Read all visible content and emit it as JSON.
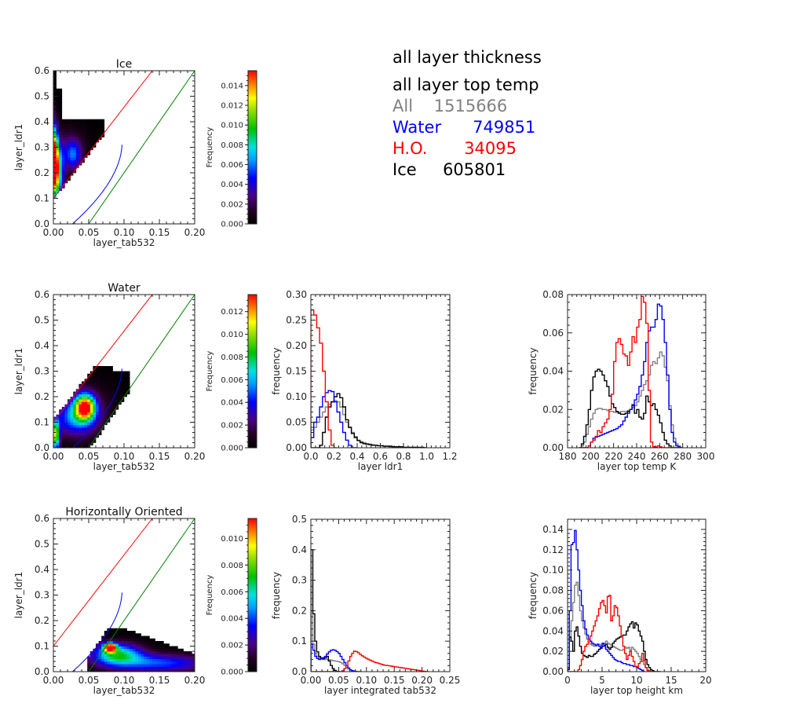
{
  "stats_panel": {
    "line1": "all layer thickness",
    "line2": "all layer top temp",
    "rows": [
      {
        "label": "All",
        "value": "1515666",
        "color": "#808080",
        "gap": "    "
      },
      {
        "label": "Water",
        "value": "749851",
        "color": "#0000ff",
        "gap": "      "
      },
      {
        "label": "H.O.",
        "value": "34095",
        "color": "#ff0000",
        "gap": "       "
      },
      {
        "label": "Ice",
        "value": "605801",
        "color": "#000000",
        "gap": "     "
      }
    ]
  },
  "colors": {
    "all": "#808080",
    "water": "#0000ff",
    "ho": "#ff0000",
    "ice": "#000000",
    "ref_red": "#ff0000",
    "ref_green": "#008000",
    "ref_blue": "#0000ff"
  },
  "chart_data": [
    {
      "id": "ice2d",
      "type": "heatmap",
      "title": "Ice",
      "xlabel": "layer_tab532",
      "ylabel": "layer_ldr1",
      "xlim": [
        0,
        0.2
      ],
      "ylim": [
        0,
        0.6
      ],
      "xticks": [
        "0.00",
        "0.05",
        "0.10",
        "0.15",
        "0.20"
      ],
      "yticks": [
        "0.0",
        "0.1",
        "0.2",
        "0.3",
        "0.4",
        "0.5",
        "0.6"
      ],
      "colorbar": {
        "label": "Frequency",
        "max": 0.0155,
        "ticks": [
          "0.000",
          "0.002",
          "0.004",
          "0.006",
          "0.008",
          "0.010",
          "0.012",
          "0.014"
        ]
      },
      "blobs": [
        {
          "x": 0.002,
          "y": 0.25,
          "sx": 0.003,
          "sy": 0.09,
          "amp": 1.0
        },
        {
          "x": 0.006,
          "y": 0.2,
          "sx": 0.006,
          "sy": 0.07,
          "amp": 0.6
        },
        {
          "x": 0.028,
          "y": 0.27,
          "sx": 0.008,
          "sy": 0.04,
          "amp": 0.3
        },
        {
          "x": 0.02,
          "y": 0.3,
          "sx": 0.02,
          "sy": 0.06,
          "amp": 0.12
        }
      ],
      "region": "ice"
    },
    {
      "id": "water2d",
      "type": "heatmap",
      "title": "Water",
      "xlabel": "layer_tab532",
      "ylabel": "layer_ldr1",
      "xlim": [
        0,
        0.2
      ],
      "ylim": [
        0,
        0.6
      ],
      "xticks": [
        "0.00",
        "0.05",
        "0.10",
        "0.15",
        "0.20"
      ],
      "yticks": [
        "0.0",
        "0.1",
        "0.2",
        "0.3",
        "0.4",
        "0.5",
        "0.6"
      ],
      "colorbar": {
        "label": "Frequency",
        "max": 0.0135,
        "ticks": [
          "0.000",
          "0.002",
          "0.004",
          "0.006",
          "0.008",
          "0.010",
          "0.012"
        ]
      },
      "blobs": [
        {
          "x": 0.003,
          "y": 0.05,
          "sx": 0.004,
          "sy": 0.04,
          "amp": 0.75
        },
        {
          "x": 0.045,
          "y": 0.16,
          "sx": 0.01,
          "sy": 0.035,
          "amp": 0.9
        },
        {
          "x": 0.03,
          "y": 0.12,
          "sx": 0.02,
          "sy": 0.05,
          "amp": 0.35
        },
        {
          "x": 0.05,
          "y": 0.15,
          "sx": 0.03,
          "sy": 0.08,
          "amp": 0.1
        }
      ],
      "region": "water"
    },
    {
      "id": "ho2d",
      "type": "heatmap",
      "title": "Horizontally Oriented",
      "xlabel": "layer_tab532",
      "ylabel": "layer_ldr1",
      "xlim": [
        0,
        0.2
      ],
      "ylim": [
        0,
        0.6
      ],
      "xticks": [
        "0.00",
        "0.05",
        "0.10",
        "0.15",
        "0.20"
      ],
      "yticks": [
        "0.0",
        "0.1",
        "0.2",
        "0.3",
        "0.4",
        "0.5",
        "0.6"
      ],
      "colorbar": {
        "label": "Frequency",
        "max": 0.0115,
        "ticks": [
          "0.000",
          "0.002",
          "0.004",
          "0.006",
          "0.008",
          "0.010"
        ]
      },
      "blobs": [
        {
          "x": 0.08,
          "y": 0.095,
          "sx": 0.006,
          "sy": 0.012,
          "amp": 1.0
        },
        {
          "x": 0.09,
          "y": 0.07,
          "sx": 0.025,
          "sy": 0.03,
          "amp": 0.55
        },
        {
          "x": 0.15,
          "y": 0.035,
          "sx": 0.05,
          "sy": 0.025,
          "amp": 0.35
        }
      ],
      "region": "ho"
    },
    {
      "id": "ldr1hist",
      "type": "line",
      "title": "",
      "xlabel": "layer ldr1",
      "ylabel": "frequency",
      "xlim": [
        0,
        1.2
      ],
      "ylim": [
        0,
        0.3
      ],
      "xticks": [
        "0.0",
        "0.2",
        "0.4",
        "0.6",
        "0.8",
        "1.0",
        "1.2"
      ],
      "yticks": [
        "0.00",
        "0.05",
        "0.10",
        "0.15",
        "0.20",
        "0.25",
        "0.30"
      ],
      "bin_start": 0,
      "bin_width": 0.025,
      "series": [
        {
          "name": "All",
          "color": "#808080",
          "values": [
            0.035,
            0.04,
            0.05,
            0.06,
            0.07,
            0.08,
            0.085,
            0.09,
            0.092,
            0.09,
            0.08,
            0.065,
            0.05,
            0.04,
            0.03,
            0.022,
            0.015,
            0.012,
            0.01,
            0.008,
            0.007,
            0.006,
            0.005,
            0.004,
            0.004,
            0.003,
            0.003,
            0.002,
            0.002,
            0.002,
            0.001,
            0.001,
            0.001,
            0.001,
            0.001,
            0.001,
            0.0,
            0.0,
            0.0,
            0.0
          ]
        },
        {
          "name": "Water",
          "color": "#0000ff",
          "values": [
            0.02,
            0.05,
            0.06,
            0.08,
            0.1,
            0.108,
            0.112,
            0.11,
            0.09,
            0.07,
            0.05,
            0.03,
            0.015,
            0.005,
            0.0,
            0.0
          ]
        },
        {
          "name": "H.O.",
          "color": "#ff0000",
          "values": [
            0.27,
            0.26,
            0.235,
            0.205,
            0.15,
            0.09,
            0.035,
            0.005,
            0.0
          ]
        },
        {
          "name": "Ice",
          "color": "#000000",
          "values": [
            0.0,
            0.0,
            0.0,
            0.005,
            0.03,
            0.06,
            0.08,
            0.09,
            0.1,
            0.106,
            0.098,
            0.08,
            0.055,
            0.04,
            0.028,
            0.02,
            0.014,
            0.01,
            0.008,
            0.007,
            0.006,
            0.005,
            0.005,
            0.004,
            0.004,
            0.003,
            0.003,
            0.003,
            0.002,
            0.002,
            0.002,
            0.002,
            0.001,
            0.001,
            0.001,
            0.001,
            0.001,
            0.001,
            0.001,
            0.0
          ]
        }
      ]
    },
    {
      "id": "temphist",
      "type": "line",
      "title": "",
      "xlabel": "layer top temp K",
      "ylabel": "frequency",
      "xlim": [
        180,
        300
      ],
      "ylim": [
        0,
        0.08
      ],
      "xticks": [
        "180",
        "200",
        "220",
        "240",
        "260",
        "280",
        "300"
      ],
      "yticks": [
        "0.00",
        "0.02",
        "0.04",
        "0.06",
        "0.08"
      ],
      "bin_start": 190,
      "bin_width": 2,
      "series": [
        {
          "name": "All",
          "color": "#808080",
          "values": [
            0,
            0.001,
            0.003,
            0.007,
            0.011,
            0.015,
            0.018,
            0.02,
            0.0205,
            0.0205,
            0.02,
            0.02,
            0.0195,
            0.019,
            0.019,
            0.0185,
            0.0185,
            0.0185,
            0.019,
            0.019,
            0.019,
            0.0195,
            0.02,
            0.021,
            0.022,
            0.024,
            0.027,
            0.03,
            0.033,
            0.035,
            0.038,
            0.043,
            0.045,
            0.044,
            0.047,
            0.05,
            0.048,
            0.042,
            0.035,
            0.022,
            0.012,
            0.005,
            0.002,
            0.001,
            0
          ]
        },
        {
          "name": "Water",
          "color": "#0000ff",
          "values": [
            0,
            0,
            0,
            0,
            0.001,
            0.003,
            0.005,
            0.0055,
            0.006,
            0.0065,
            0.007,
            0.0075,
            0.008,
            0.0085,
            0.009,
            0.0095,
            0.01,
            0.011,
            0.012,
            0.014,
            0.016,
            0.018,
            0.02,
            0.022,
            0.025,
            0.028,
            0.032,
            0.038,
            0.045,
            0.055,
            0.061,
            0.063,
            0.063,
            0.067,
            0.075,
            0.074,
            0.067,
            0.055,
            0.038,
            0.02,
            0.008,
            0.003,
            0.001,
            0.0005,
            0
          ]
        },
        {
          "name": "H.O.",
          "color": "#ff0000",
          "values": [
            0,
            0,
            0,
            0,
            0.001,
            0.003,
            0.004,
            0.006,
            0.009,
            0.008,
            0.011,
            0.013,
            0.015,
            0.02,
            0.028,
            0.045,
            0.055,
            0.057,
            0.054,
            0.049,
            0.048,
            0.043,
            0.05,
            0.058,
            0.055,
            0.063,
            0.067,
            0.079,
            0.076,
            0.065,
            0.03,
            0.003,
            0.0005,
            0.0005,
            0.001,
            0.0005,
            0,
            0,
            0,
            0,
            0,
            0,
            0,
            0,
            0
          ]
        },
        {
          "name": "Ice",
          "color": "#000000",
          "values": [
            0,
            0.002,
            0.006,
            0.012,
            0.02,
            0.03,
            0.037,
            0.04,
            0.041,
            0.04,
            0.038,
            0.035,
            0.032,
            0.027,
            0.023,
            0.021,
            0.019,
            0.018,
            0.0175,
            0.0175,
            0.018,
            0.019,
            0.02,
            0.0225,
            0.018,
            0.02,
            0.016,
            0.015,
            0.018,
            0.027,
            0.024,
            0.022,
            0.023,
            0.02,
            0.017,
            0.013,
            0.008,
            0.004,
            0.002,
            0.001,
            0,
            0,
            0,
            0,
            0
          ]
        }
      ]
    },
    {
      "id": "tabhist",
      "type": "line",
      "title": "",
      "xlabel": "layer integrated tab532",
      "ylabel": "frequency",
      "xlim": [
        0,
        0.25
      ],
      "ylim": [
        0,
        0.5
      ],
      "xticks": [
        "0.00",
        "0.05",
        "0.10",
        "0.15",
        "0.20",
        "0.25"
      ],
      "yticks": [
        "0.0",
        "0.1",
        "0.2",
        "0.3",
        "0.4",
        "0.5"
      ],
      "bin_start": 0,
      "bin_width": 0.0035,
      "series": [
        {
          "name": "All",
          "color": "#808080",
          "values": [
            0.2,
            0.09,
            0.06,
            0.05,
            0.045,
            0.042,
            0.04,
            0.04,
            0.04,
            0.039,
            0.038,
            0.036,
            0.035,
            0.034,
            0.033,
            0.03,
            0.026,
            0.02,
            0.014,
            0.008,
            0.005,
            0.003,
            0.002,
            0.001,
            0.001,
            0.0
          ]
        },
        {
          "name": "Water",
          "color": "#0000ff",
          "values": [
            0.09,
            0.07,
            0.05,
            0.043,
            0.04,
            0.042,
            0.045,
            0.05,
            0.058,
            0.065,
            0.07,
            0.072,
            0.07,
            0.066,
            0.06,
            0.05,
            0.04,
            0.03,
            0.02,
            0.012,
            0.006,
            0.003,
            0.001,
            0.0
          ]
        },
        {
          "name": "H.O.",
          "color": "#ff0000",
          "values": [
            0,
            0,
            0,
            0,
            0,
            0,
            0,
            0,
            0,
            0,
            0,
            0,
            0,
            0,
            0,
            0,
            0.003,
            0.01,
            0.02,
            0.035,
            0.05,
            0.06,
            0.067,
            0.066,
            0.062,
            0.057,
            0.052,
            0.048,
            0.044,
            0.041,
            0.038,
            0.035,
            0.032,
            0.03,
            0.028,
            0.026,
            0.024,
            0.022,
            0.021,
            0.02,
            0.019,
            0.018,
            0.017,
            0.016,
            0.015,
            0.014,
            0.013,
            0.012,
            0.011,
            0.01,
            0.009,
            0.008,
            0.007,
            0.006,
            0.005,
            0.004,
            0.003,
            0.002,
            0.001,
            0.0
          ]
        },
        {
          "name": "Ice",
          "color": "#000000",
          "values": [
            0.4,
            0.19,
            0.1,
            0.065,
            0.05,
            0.045,
            0.042,
            0.045,
            0.05,
            0.035,
            0.02,
            0.01,
            0.004,
            0.001,
            0.0
          ]
        }
      ]
    },
    {
      "id": "heighthist",
      "type": "line",
      "title": "",
      "xlabel": "layer top height km",
      "ylabel": "frequency",
      "xlim": [
        0,
        20
      ],
      "ylim": [
        0,
        0.15
      ],
      "xticks": [
        "0",
        "5",
        "10",
        "15",
        "20"
      ],
      "yticks": [
        "0.00",
        "0.02",
        "0.04",
        "0.06",
        "0.08",
        "0.10",
        "0.12",
        "0.14"
      ],
      "bin_start": 0,
      "bin_width": 0.25,
      "series": [
        {
          "name": "All",
          "color": "#808080",
          "values": [
            0.002,
            0.03,
            0.05,
            0.068,
            0.085,
            0.088,
            0.075,
            0.06,
            0.05,
            0.043,
            0.037,
            0.032,
            0.029,
            0.027,
            0.026,
            0.025,
            0.025,
            0.026,
            0.027,
            0.026,
            0.027,
            0.028,
            0.03,
            0.028,
            0.027,
            0.026,
            0.025,
            0.024,
            0.023,
            0.022,
            0.021,
            0.021,
            0.022,
            0.024,
            0.023,
            0.024,
            0.021,
            0.024,
            0.022,
            0.02,
            0.018,
            0.015,
            0.012,
            0.01,
            0.007,
            0.004,
            0.002,
            0.001,
            0.0
          ]
        },
        {
          "name": "Water",
          "color": "#0000ff",
          "values": [
            0.004,
            0.06,
            0.125,
            0.127,
            0.139,
            0.12,
            0.1,
            0.08,
            0.065,
            0.05,
            0.042,
            0.036,
            0.032,
            0.03,
            0.028,
            0.027,
            0.026,
            0.027,
            0.025,
            0.023,
            0.028,
            0.025,
            0.022,
            0.02,
            0.018,
            0.016,
            0.014,
            0.012,
            0.011,
            0.01,
            0.01,
            0.009,
            0.008,
            0.008,
            0.007,
            0.007,
            0.006,
            0.006,
            0.005,
            0.005,
            0.004,
            0.003,
            0.002,
            0.001,
            0.0
          ]
        },
        {
          "name": "H.O.",
          "color": "#ff0000",
          "values": [
            0,
            0,
            0,
            0,
            0,
            0,
            0.002,
            0.006,
            0.012,
            0.02,
            0.025,
            0.027,
            0.032,
            0.035,
            0.04,
            0.045,
            0.05,
            0.055,
            0.062,
            0.068,
            0.07,
            0.065,
            0.058,
            0.074,
            0.075,
            0.05,
            0.055,
            0.065,
            0.063,
            0.055,
            0.045,
            0.035,
            0.025,
            0.018,
            0.012,
            0.016,
            0.02,
            0.015,
            0.01,
            0.005,
            0.005,
            0.008,
            0.01,
            0.018,
            0.011,
            0.004,
            0.001,
            0.0
          ]
        },
        {
          "name": "Ice",
          "color": "#000000",
          "values": [
            0.002,
            0.034,
            0.03,
            0.02,
            0.04,
            0.044,
            0.035,
            0.025,
            0.018,
            0.016,
            0.015,
            0.014,
            0.016,
            0.015,
            0.015,
            0.017,
            0.018,
            0.02,
            0.022,
            0.024,
            0.025,
            0.026,
            0.027,
            0.024,
            0.022,
            0.024,
            0.028,
            0.03,
            0.032,
            0.033,
            0.034,
            0.035,
            0.036,
            0.036,
            0.04,
            0.044,
            0.047,
            0.049,
            0.043,
            0.048,
            0.046,
            0.04,
            0.035,
            0.03,
            0.02,
            0.012,
            0.007,
            0.004,
            0.002,
            0.001,
            0.0,
            0.0,
            0.0,
            0.0
          ]
        }
      ]
    }
  ]
}
